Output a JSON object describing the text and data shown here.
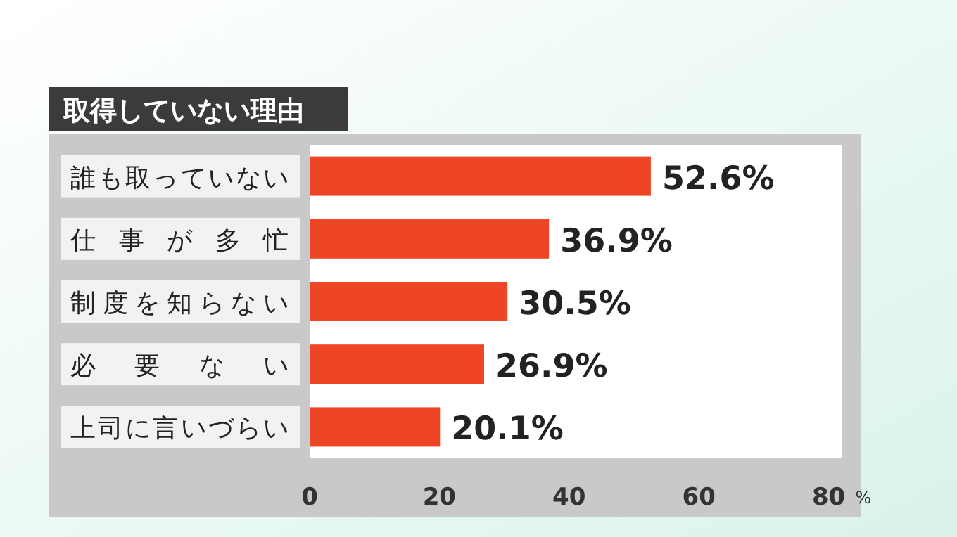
{
  "chart_data": {
    "type": "bar",
    "orientation": "horizontal",
    "title": "取得していない理由",
    "categories": [
      "誰も取っていない",
      "仕事が多忙",
      "制度を知らない",
      "必要ない",
      "上司に言いづらい"
    ],
    "values": [
      52.6,
      36.9,
      30.5,
      26.9,
      20.1
    ],
    "value_labels": [
      "52.6%",
      "36.9%",
      "30.5%",
      "26.9%",
      "20.1%"
    ],
    "color": "#ee4526",
    "xlim": [
      0,
      82
    ],
    "xticks": [
      0,
      20,
      40,
      60,
      80
    ],
    "xlabel": "%"
  }
}
